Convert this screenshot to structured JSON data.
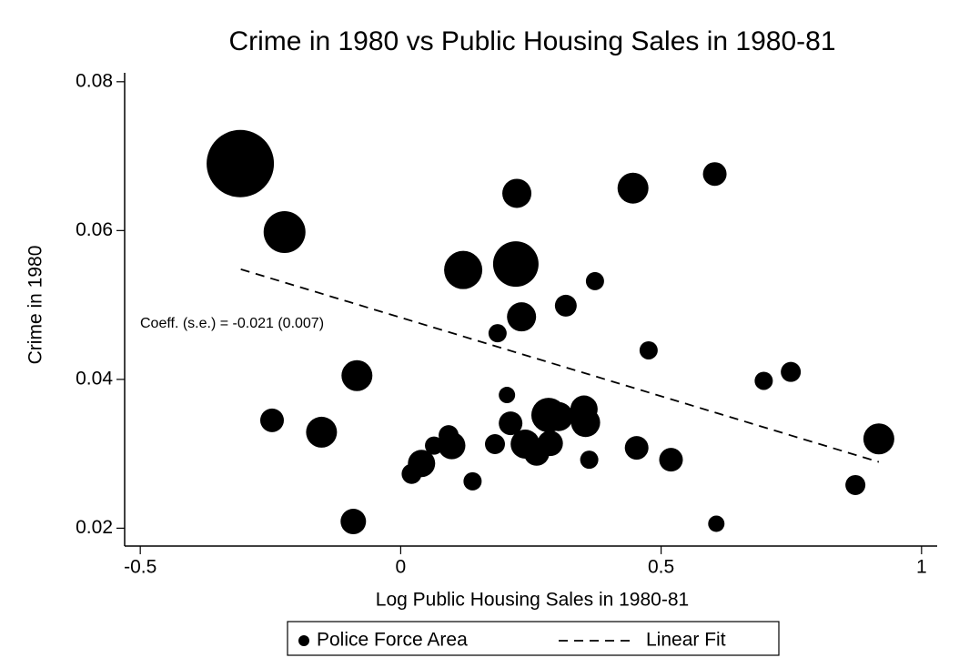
{
  "chart_data": {
    "type": "scatter",
    "title": "Crime in 1980 vs Public Housing Sales in 1980-81",
    "x_label": "Log Public Housing Sales in 1980-81",
    "y_label": "Crime in 1980",
    "annotation": "Coeff. (s.e.) = -0.021 (0.007)",
    "xlim": [
      -0.53,
      1.03
    ],
    "ylim": [
      0.0176,
      0.0812
    ],
    "xticks": [
      -0.5,
      0,
      0.5,
      1
    ],
    "yticks": [
      0.02,
      0.04,
      0.06,
      0.08
    ],
    "grid": false,
    "series": [
      {
        "name": "Police Force Area",
        "color": "#000000",
        "x": [
          -0.308,
          -0.223,
          -0.247,
          -0.152,
          -0.084,
          -0.091,
          0.12,
          0.221,
          0.223,
          0.232,
          0.186,
          0.317,
          0.373,
          0.446,
          0.603,
          0.476,
          0.204,
          0.211,
          0.284,
          0.303,
          0.355,
          0.352,
          0.239,
          0.261,
          0.287,
          0.362,
          0.453,
          0.519,
          0.181,
          0.138,
          0.098,
          0.092,
          0.064,
          0.04,
          0.021,
          0.697,
          0.749,
          0.873,
          0.918,
          0.606
        ],
        "values": [
          0.069,
          0.0598,
          0.0345,
          0.0329,
          0.0405,
          0.0209,
          0.0547,
          0.0555,
          0.065,
          0.0484,
          0.0462,
          0.0499,
          0.0532,
          0.0657,
          0.0676,
          0.0439,
          0.0379,
          0.0341,
          0.0352,
          0.035,
          0.0342,
          0.036,
          0.0313,
          0.0301,
          0.0314,
          0.0292,
          0.0308,
          0.0292,
          0.0313,
          0.0263,
          0.0311,
          0.0325,
          0.0311,
          0.0287,
          0.0273,
          0.0398,
          0.041,
          0.0258,
          0.032,
          0.0206
        ],
        "sizes": [
          13.69,
          5.29,
          1.69,
          2.89,
          2.89,
          1.96,
          4.41,
          6.25,
          2.56,
          2.56,
          1.0,
          1.44,
          1.0,
          2.89,
          1.69,
          1.0,
          0.81,
          1.69,
          3.61,
          2.56,
          2.56,
          2.25,
          2.56,
          1.96,
          1.96,
          1.0,
          1.69,
          1.69,
          1.21,
          1.0,
          2.25,
          1.21,
          1.0,
          2.25,
          1.21,
          1.0,
          1.21,
          1.21,
          2.89,
          0.81
        ]
      },
      {
        "name": "Linear Fit",
        "color": "#000000",
        "style": "dashed",
        "x": [
          -0.307,
          0.918
        ],
        "values": [
          0.0548,
          0.0289
        ]
      }
    ]
  }
}
